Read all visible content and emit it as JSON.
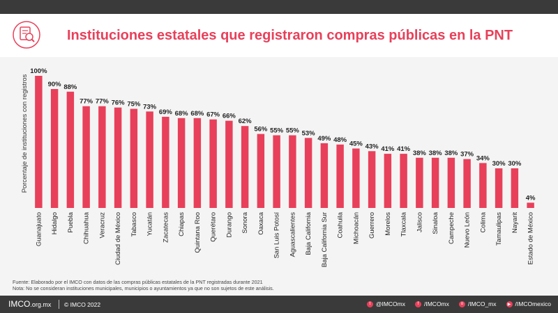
{
  "title": "Instituciones estatales que registraron compras públicas en la PNT",
  "colors": {
    "accent": "#e8405a",
    "bar": "#e8405a",
    "background": "#f4f4f4",
    "footer": "#3a3a3a"
  },
  "header_icon": "document-magnifier-icon",
  "chart_data": {
    "type": "bar",
    "title": "Instituciones estatales que registraron compras públicas en la PNT",
    "ylabel": "Porcentaje de instituciones  con registros",
    "xlabel": "",
    "ylim": [
      0,
      100
    ],
    "grid": false,
    "categories": [
      "Guanajuato",
      "Hidalgo",
      "Puebla",
      "Chihuahua",
      "Veracruz",
      "Ciudad de México",
      "Tabasco",
      "Yucatán",
      "Zacatecas",
      "Chiapas",
      "Quintana Roo",
      "Querétaro",
      "Durango",
      "Sonora",
      "Oaxaca",
      "San Luis Potosí",
      "Aguascalientes",
      "Baja California",
      "Baja California Sur",
      "Coahuila",
      "Michoacán",
      "Guerrero",
      "Morelos",
      "Tlaxcala",
      "Jalisco",
      "Sinaloa",
      "Campeche",
      "Nuevo León",
      "Colima",
      "Tamaulipas",
      "Nayarit",
      "Estado de México"
    ],
    "values": [
      100,
      90,
      88,
      77,
      77,
      76,
      75,
      73,
      69,
      68,
      68,
      67,
      66,
      62,
      56,
      55,
      55,
      53,
      49,
      48,
      45,
      43,
      41,
      41,
      38,
      38,
      38,
      37,
      34,
      30,
      30,
      4
    ],
    "data_labels": [
      "100%",
      "90%",
      "88%",
      "77%",
      "77%",
      "76%",
      "75%",
      "73%",
      "69%",
      "68%",
      "68%",
      "67%",
      "66%",
      "62%",
      "56%",
      "55%",
      "55%",
      "53%",
      "49%",
      "48%",
      "45%",
      "43%",
      "41%",
      "41%",
      "38%",
      "38%",
      "38%",
      "37%",
      "34%",
      "30%",
      "30%",
      "4%"
    ]
  },
  "notes": {
    "source": "Fuente: Elaborado por el IMCO con datos de las compras públicas estatales de la PNT registradas durante 2021",
    "note": "Nota: No se consideran instituciones municipales, municipios o ayuntamientos ya que no son sujetos de este análisis."
  },
  "footer": {
    "brand": "IMCO",
    "brand_domain": ".org.mx",
    "copyright": "© IMCO 2022",
    "socials": [
      {
        "icon": "twitter-icon",
        "glyph": "t",
        "label": "@IMCOmx"
      },
      {
        "icon": "facebook-icon",
        "glyph": "f",
        "label": "/IMCOmx"
      },
      {
        "icon": "instagram-icon",
        "glyph": "o",
        "label": "/IMCO_mx"
      },
      {
        "icon": "youtube-icon",
        "glyph": "▶",
        "label": "/IMCOmexico"
      }
    ]
  }
}
